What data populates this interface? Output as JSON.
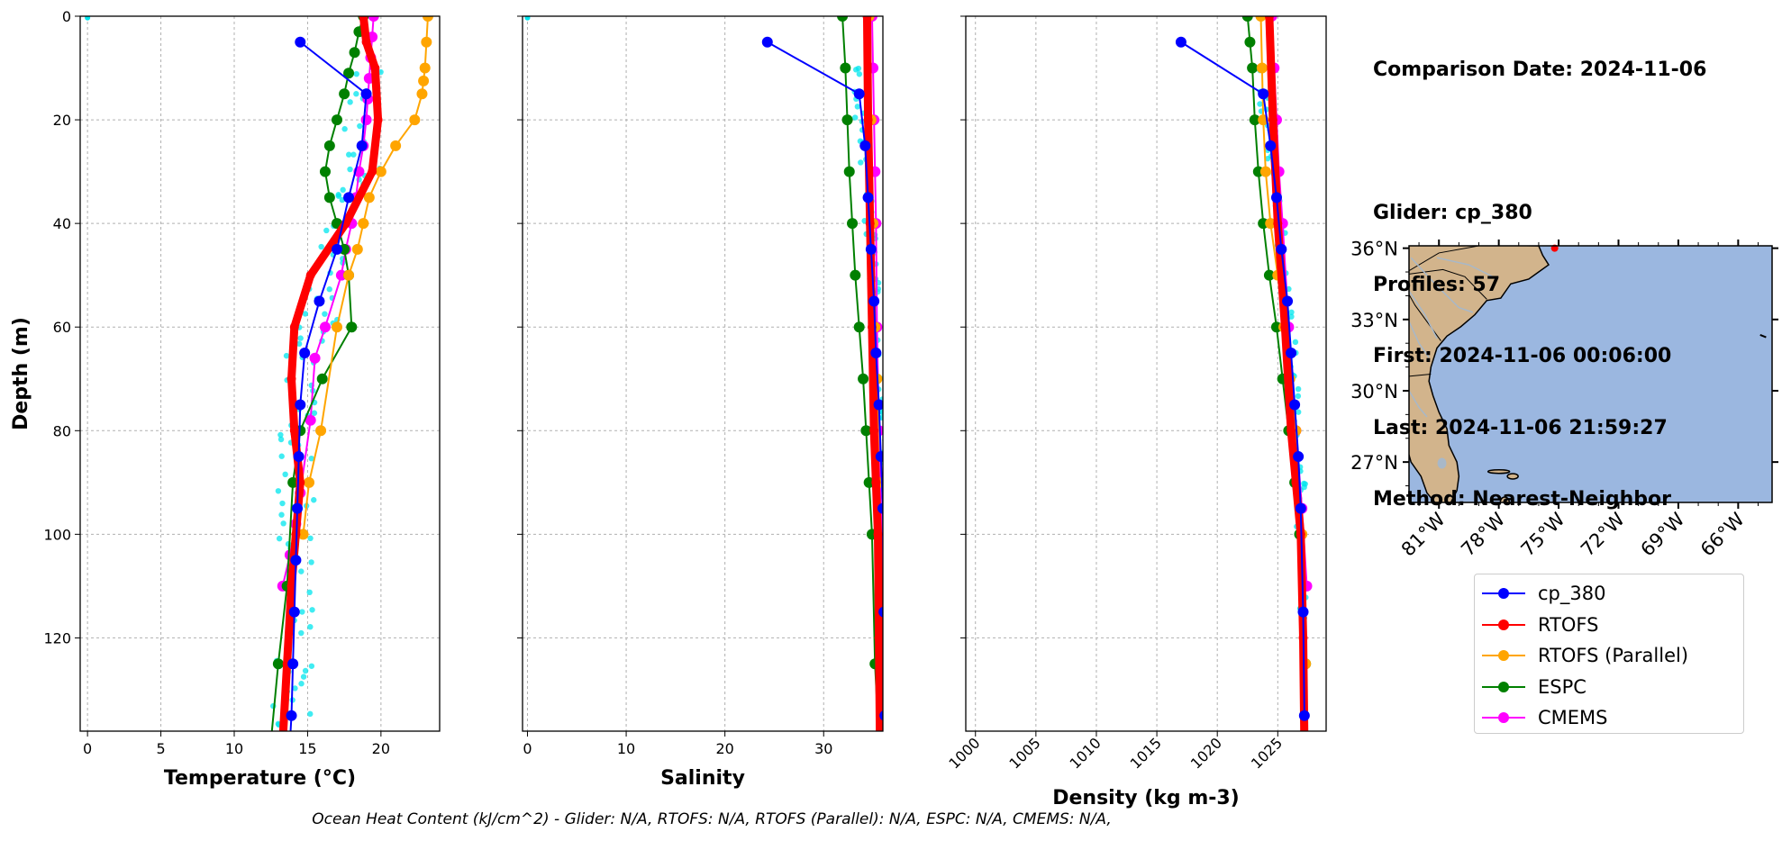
{
  "info": {
    "comparison_date": "Comparison Date: 2024-11-06",
    "glider": "Glider: cp_380",
    "profiles": "Profiles: 57",
    "first": "First: 2024-11-06 00:06:00",
    "last": "Last: 2024-11-06 21:59:27",
    "method": "Method: Nearest-Neighbor"
  },
  "ohc_text": "Ocean Heat Content (kJ/cm^2) - Glider: N/A,  RTOFS: N/A,  RTOFS (Parallel): N/A,  ESPC: N/A,  CMEMS: N/A,",
  "legend": [
    {
      "label": "cp_380",
      "color": "#0000ff"
    },
    {
      "label": "RTOFS",
      "color": "#ff0000"
    },
    {
      "label": "RTOFS (Parallel)",
      "color": "#ffa500"
    },
    {
      "label": "ESPC",
      "color": "#008000"
    },
    {
      "label": "CMEMS",
      "color": "#ff00ff"
    }
  ],
  "chart_data": [
    {
      "type": "line",
      "xlabel": "Temperature (°C)",
      "ylabel": "Depth (m)",
      "xlim": [
        -0.5,
        24
      ],
      "ylim": [
        138,
        0
      ],
      "xticks": [
        "0",
        "5",
        "10",
        "15",
        "20"
      ],
      "yticks": [
        "0",
        "20",
        "40",
        "60",
        "80",
        "100",
        "120"
      ],
      "grid": true,
      "series": [
        {
          "name": "cp_380",
          "color": "#0000ff",
          "x": [
            14.5,
            19,
            18.7,
            17.8,
            17,
            15.8,
            14.8,
            14.5,
            14.4,
            14.3,
            14.2,
            14.1,
            14,
            13.9,
            13.8
          ],
          "y": [
            5,
            15,
            25,
            35,
            45,
            55,
            65,
            75,
            85,
            95,
            105,
            115,
            125,
            135,
            140
          ]
        },
        {
          "name": "RTOFS",
          "color": "#ff0000",
          "x": [
            18.8,
            19,
            19.6,
            19.8,
            19.4,
            17.6,
            15.2,
            14.1,
            13.9,
            14.1,
            14.5,
            14.2,
            13.9,
            13.6,
            13.3
          ],
          "y": [
            0,
            5,
            10,
            20,
            30,
            40,
            50,
            60,
            70,
            80,
            90,
            100,
            110,
            125,
            140
          ]
        },
        {
          "name": "RTOFS (Parallel)",
          "color": "#ffa500",
          "x": [
            23.2,
            23.1,
            23,
            22.9,
            22.8,
            22.3,
            21,
            20,
            19.2,
            18.8,
            18.4,
            17.8,
            17,
            15.9,
            15.1,
            14.7
          ],
          "y": [
            0,
            5,
            10,
            12.5,
            15,
            20,
            25,
            30,
            35,
            40,
            45,
            50,
            60,
            80,
            90,
            100
          ]
        },
        {
          "name": "ESPC",
          "color": "#008000",
          "x": [
            18.8,
            18.5,
            18.2,
            17.8,
            17.5,
            17,
            16.5,
            16.2,
            16.5,
            17,
            17.5,
            17.8,
            18,
            16,
            14.5,
            14,
            13.6,
            13,
            12.5
          ],
          "y": [
            0,
            3,
            7,
            11,
            15,
            20,
            25,
            30,
            35,
            40,
            45,
            50,
            60,
            70,
            80,
            90,
            110,
            125,
            140
          ]
        },
        {
          "name": "CMEMS",
          "color": "#ff00ff",
          "x": [
            19.5,
            19.4,
            19.3,
            19.2,
            19.1,
            19,
            18.8,
            18.5,
            18.3,
            18,
            17.6,
            17.3,
            16.2,
            15.5,
            15.2,
            14.5,
            14.2,
            13.8,
            13.3
          ],
          "y": [
            0,
            4,
            8,
            12,
            16,
            20,
            25,
            30,
            35,
            40,
            45,
            50,
            60,
            66,
            78,
            92,
            98,
            104,
            110
          ]
        }
      ]
    },
    {
      "type": "line",
      "xlabel": "Salinity",
      "xlim": [
        -0.5,
        36
      ],
      "ylim": [
        138,
        0
      ],
      "xticks": [
        "0",
        "10",
        "20",
        "30"
      ],
      "grid": true,
      "series": [
        {
          "name": "cp_380",
          "color": "#0000ff",
          "x": [
            24.3,
            33.6,
            34.2,
            34.5,
            34.8,
            35.1,
            35.3,
            35.6,
            35.8,
            36,
            36.1,
            36.2
          ],
          "y": [
            5,
            15,
            25,
            35,
            45,
            55,
            65,
            75,
            85,
            95,
            115,
            135
          ]
        },
        {
          "name": "RTOFS",
          "color": "#ff0000",
          "x": [
            34.4,
            34.5,
            34.7,
            34.9,
            35.1,
            35.3,
            35.5,
            35.6,
            35.7
          ],
          "y": [
            0,
            20,
            40,
            60,
            80,
            90,
            100,
            120,
            140
          ]
        },
        {
          "name": "RTOFS (Parallel)",
          "color": "#ffa500",
          "x": [
            34.6,
            34.8,
            35,
            35.2,
            35.4,
            35.6,
            35.8,
            35.9
          ],
          "y": [
            0,
            20,
            40,
            60,
            70,
            90,
            110,
            140
          ]
        },
        {
          "name": "ESPC",
          "color": "#008000",
          "x": [
            31.9,
            32.2,
            32.4,
            32.6,
            32.9,
            33.2,
            33.6,
            34,
            34.3,
            34.6,
            34.9,
            35.2,
            35.6
          ],
          "y": [
            0,
            10,
            20,
            30,
            40,
            50,
            60,
            70,
            80,
            90,
            100,
            125,
            140
          ]
        },
        {
          "name": "CMEMS",
          "color": "#ff00ff",
          "x": [
            34.9,
            35,
            35.1,
            35.2,
            35.3,
            35.4,
            35.6,
            35.8,
            36
          ],
          "y": [
            0,
            10,
            20,
            30,
            40,
            60,
            80,
            95,
            110
          ]
        }
      ]
    },
    {
      "type": "line",
      "xlabel": "Density (kg m-3)",
      "xlim": [
        999.2,
        1029
      ],
      "ylim": [
        138,
        0
      ],
      "xticks": [
        "1000",
        "1005",
        "1010",
        "1015",
        "1020",
        "1025"
      ],
      "grid": true,
      "series": [
        {
          "name": "cp_380",
          "color": "#0000ff",
          "x": [
            1017,
            1023.8,
            1024.4,
            1024.9,
            1025.3,
            1025.8,
            1026.1,
            1026.4,
            1026.7,
            1026.9,
            1027.1,
            1027.2
          ],
          "y": [
            5,
            15,
            25,
            35,
            45,
            55,
            65,
            75,
            85,
            95,
            115,
            135
          ]
        },
        {
          "name": "RTOFS",
          "color": "#ff0000",
          "x": [
            1024.3,
            1024.6,
            1025,
            1025.6,
            1026.1,
            1026.5,
            1026.9,
            1027.1,
            1027.2
          ],
          "y": [
            0,
            20,
            40,
            60,
            80,
            90,
            100,
            120,
            140
          ]
        },
        {
          "name": "RTOFS (Parallel)",
          "color": "#ffa500",
          "x": [
            1023.6,
            1023.7,
            1023.8,
            1024,
            1024.4,
            1025,
            1025.5,
            1026,
            1026.5,
            1027,
            1027.3
          ],
          "y": [
            0,
            10,
            20,
            30,
            40,
            50,
            60,
            70,
            80,
            100,
            125
          ]
        },
        {
          "name": "ESPC",
          "color": "#008000",
          "x": [
            1022.5,
            1022.7,
            1022.9,
            1023.1,
            1023.4,
            1023.8,
            1024.3,
            1024.9,
            1025.4,
            1025.9,
            1026.4,
            1026.8,
            1027.3
          ],
          "y": [
            0,
            5,
            10,
            20,
            30,
            40,
            50,
            60,
            70,
            80,
            90,
            100,
            125
          ]
        },
        {
          "name": "CMEMS",
          "color": "#ff00ff",
          "x": [
            1024.5,
            1024.7,
            1024.9,
            1025.1,
            1025.4,
            1025.9,
            1026.5,
            1027,
            1027.4
          ],
          "y": [
            0,
            10,
            20,
            30,
            40,
            60,
            80,
            95,
            110
          ]
        }
      ]
    }
  ],
  "map": {
    "lat_ticks": [
      "36°N",
      "33°N",
      "30°N",
      "27°N"
    ],
    "lon_ticks": [
      "81°W",
      "78°W",
      "75°W",
      "72°W",
      "69°W",
      "66°W"
    ],
    "ocean_color": "#9bb7e0",
    "land_color": "#d2b48c",
    "river_color": "#a8b8c8"
  }
}
